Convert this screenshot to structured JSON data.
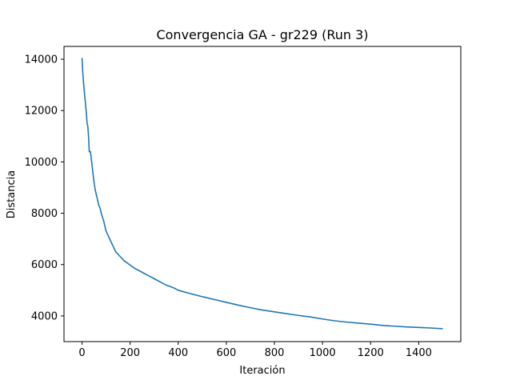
{
  "chart_data": {
    "type": "line",
    "title": "Convergencia GA - gr229 (Run 3)",
    "xlabel": "Iteración",
    "ylabel": "Distancia",
    "xlim": [
      -75,
      1575
    ],
    "ylim": [
      3000,
      14500
    ],
    "xticks": [
      0,
      200,
      400,
      600,
      800,
      1000,
      1200,
      1400
    ],
    "yticks": [
      4000,
      6000,
      8000,
      10000,
      12000,
      14000
    ],
    "grid": false,
    "series": [
      {
        "color": "#1f77b4",
        "x": [
          0,
          3,
          6,
          9,
          12,
          15,
          18,
          21,
          24,
          27,
          30,
          35,
          40,
          45,
          50,
          55,
          60,
          65,
          70,
          75,
          80,
          90,
          100,
          110,
          120,
          130,
          140,
          150,
          160,
          175,
          190,
          200,
          220,
          250,
          280,
          300,
          330,
          350,
          380,
          400,
          450,
          500,
          550,
          600,
          650,
          700,
          750,
          800,
          850,
          900,
          950,
          1000,
          1050,
          1100,
          1150,
          1200,
          1250,
          1300,
          1350,
          1400,
          1450,
          1500
        ],
        "y": [
          14050,
          13500,
          13100,
          12800,
          12500,
          12200,
          11900,
          11500,
          11400,
          11000,
          10400,
          10400,
          10000,
          9600,
          9200,
          8900,
          8700,
          8500,
          8300,
          8200,
          8000,
          7700,
          7300,
          7100,
          6900,
          6700,
          6500,
          6400,
          6300,
          6150,
          6050,
          5980,
          5850,
          5700,
          5550,
          5450,
          5300,
          5200,
          5100,
          5000,
          4870,
          4750,
          4640,
          4530,
          4420,
          4320,
          4230,
          4160,
          4090,
          4020,
          3960,
          3880,
          3810,
          3760,
          3720,
          3680,
          3630,
          3600,
          3570,
          3550,
          3530,
          3500
        ]
      }
    ]
  }
}
